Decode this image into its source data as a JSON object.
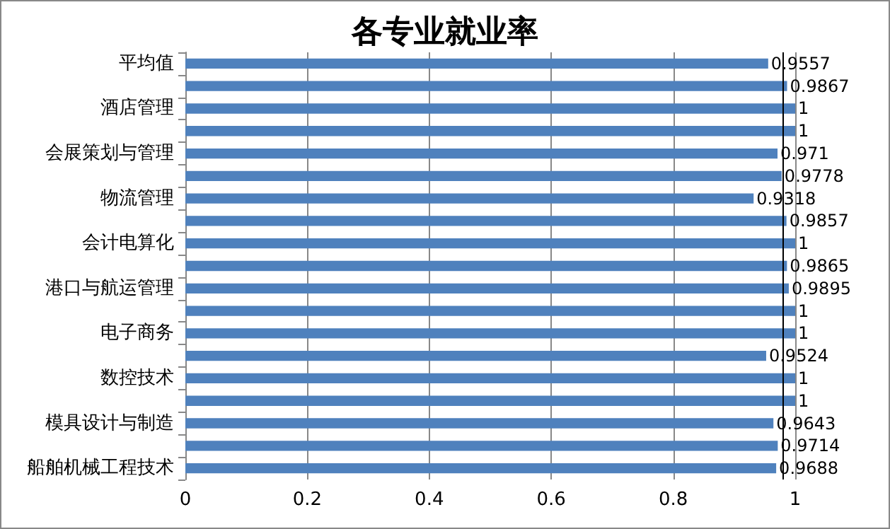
{
  "chart_data": {
    "type": "bar",
    "title": "各专业就业率",
    "orientation": "horizontal",
    "categories": [
      "平均值",
      null,
      "酒店管理",
      null,
      "会展策划与管理",
      null,
      "物流管理",
      null,
      "会计电算化",
      null,
      "港口与航运管理",
      null,
      "电子商务",
      null,
      "数控技术",
      null,
      "模具设计与制造",
      null,
      "船舶机械工程技术"
    ],
    "values": [
      0.9557,
      0.9867,
      1,
      1,
      0.971,
      0.9778,
      0.9318,
      0.9857,
      1,
      0.9865,
      0.9895,
      1,
      1,
      0.9524,
      1,
      1,
      0.9643,
      0.9714,
      0.9688
    ],
    "color": "#4f81bd",
    "xlim": [
      0,
      1
    ],
    "xticks": [
      0,
      0.2,
      0.4,
      0.6,
      0.8,
      1
    ],
    "grid": "x",
    "data_labels": true,
    "ref_lines": [
      {
        "axis": "x",
        "value": 0.977,
        "color": "#000000"
      }
    ]
  }
}
